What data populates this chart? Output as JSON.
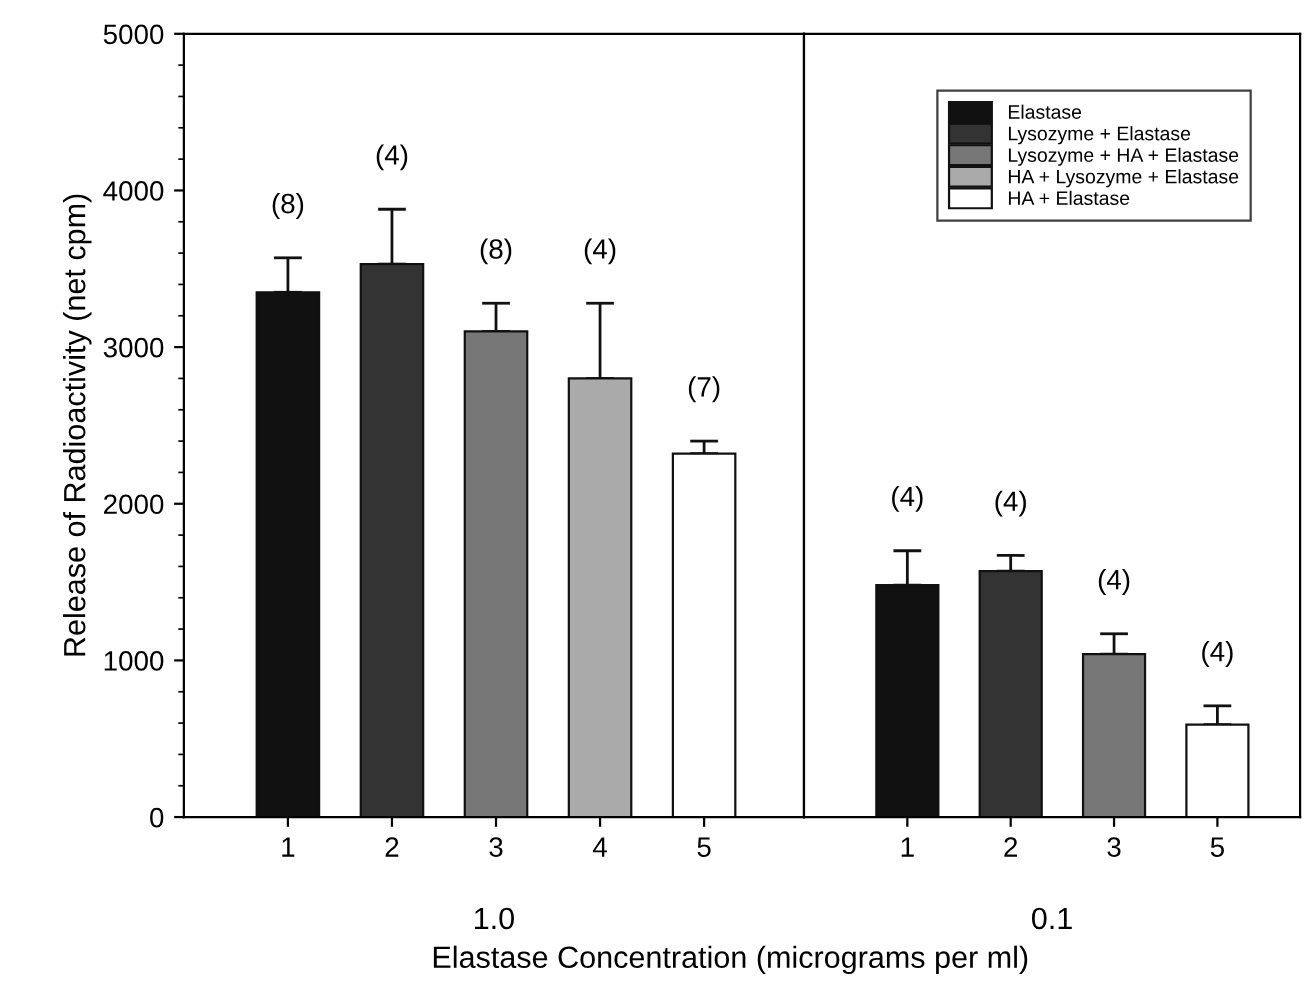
{
  "chart_data": [
    {
      "type": "bar",
      "ylabel": "Release of Radioactivity (net cpm)",
      "xlabel": "1.0",
      "categories": [
        "1",
        "2",
        "3",
        "4",
        "5"
      ],
      "ylim": [
        0,
        5000
      ],
      "yticks": [
        0,
        1000,
        2000,
        3000,
        4000,
        5000
      ],
      "series": [
        {
          "color": "#111111",
          "values": [
            3350,
            null,
            null,
            null,
            null
          ],
          "errors": [
            [
              3350,
              3570
            ],
            null,
            null,
            null,
            null
          ]
        },
        {
          "color": "#333333",
          "values": [
            null,
            3530,
            null,
            null,
            null
          ],
          "errors": [
            null,
            [
              3530,
              3880
            ],
            null,
            null,
            null
          ]
        },
        {
          "color": "#777777",
          "values": [
            null,
            null,
            3100,
            null,
            null
          ],
          "errors": [
            null,
            null,
            [
              3100,
              3280
            ],
            null,
            null
          ]
        },
        {
          "color": "#aaaaaa",
          "values": [
            null,
            null,
            null,
            2800,
            null
          ],
          "errors": [
            null,
            null,
            null,
            [
              2800,
              3280
            ],
            null
          ]
        },
        {
          "color": "#ffffff",
          "values": [
            null,
            null,
            null,
            null,
            2320
          ],
          "errors": [
            null,
            null,
            null,
            null,
            [
              2320,
              2400
            ]
          ]
        }
      ],
      "annotations": [
        "(8)",
        "(4)",
        "(8)",
        "(4)",
        "(7)"
      ]
    },
    {
      "type": "bar",
      "xlabel": "0.1",
      "categories": [
        "1",
        "2",
        "3",
        "5"
      ],
      "ylim": [
        0,
        5000
      ],
      "yticks": [
        0,
        1000,
        2000,
        3000,
        4000,
        5000
      ],
      "tick_labels": "x",
      "legend": "top right",
      "series": [
        {
          "name": "Elastase",
          "color": "#111111",
          "values": [
            1480,
            null,
            null,
            null
          ],
          "errors": [
            [
              1480,
              1700
            ],
            null,
            null,
            null
          ]
        },
        {
          "name": "Lysozyme + Elastase",
          "color": "#333333",
          "values": [
            null,
            1570,
            null,
            null
          ],
          "errors": [
            null,
            [
              1570,
              1670
            ],
            null,
            null
          ]
        },
        {
          "name": "Lysozyme + HA + Elastase",
          "color": "#777777",
          "values": [
            null,
            null,
            1040,
            null
          ],
          "errors": [
            null,
            null,
            [
              1040,
              1170
            ],
            null
          ]
        },
        {
          "name": "HA + Lysozyme + Elastase",
          "color": "#aaaaaa",
          "values": [
            null,
            null,
            null,
            null
          ]
        },
        {
          "name": "HA + Elastase",
          "color": "#ffffff",
          "values": [
            null,
            null,
            null,
            590
          ],
          "errors": [
            null,
            null,
            null,
            [
              590,
              710
            ]
          ]
        }
      ],
      "annotations": [
        "(4)",
        "(4)",
        "(4)",
        "(4)",
        "Elastase Concentration (micrograms per ml)"
      ]
    }
  ]
}
